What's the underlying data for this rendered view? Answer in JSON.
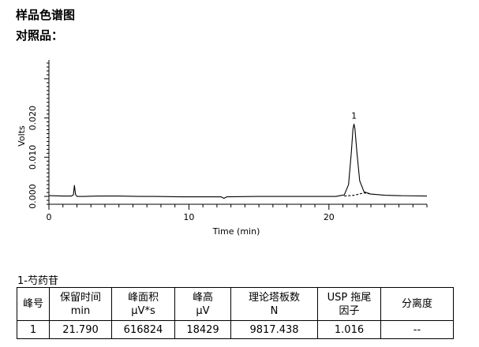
{
  "title": "样品色谱图",
  "subtitle": "对照品：",
  "chart_data": {
    "type": "line",
    "ylabel": "Volts",
    "xlabel": "Time (min)",
    "xlim": [
      0,
      27.0
    ],
    "ylim": [
      -0.002,
      0.0348
    ],
    "x_ticks": [
      0,
      10,
      20
    ],
    "y_ticks": [
      {
        "value": 0.0,
        "label": "0.000"
      },
      {
        "value": 0.01,
        "label": "0.010"
      },
      {
        "value": 0.02,
        "label": "0.020"
      }
    ],
    "series": [
      {
        "style": "solid",
        "points": [
          [
            0,
            0.0002
          ],
          [
            1.0,
            0.0001
          ],
          [
            1.6,
            0.0001
          ],
          [
            1.75,
            0.0004
          ],
          [
            1.82,
            0.0028
          ],
          [
            1.9,
            0.0005
          ],
          [
            2.0,
            0.0
          ],
          [
            2.5,
            0.0
          ],
          [
            3.5,
            0.0001
          ],
          [
            5.0,
            0.0001
          ],
          [
            6.5,
            0.0
          ],
          [
            7.5,
            0.0
          ],
          [
            9.5,
            -0.0001
          ],
          [
            12.3,
            -0.0001
          ],
          [
            12.5,
            -0.0005
          ],
          [
            12.7,
            -0.0001
          ],
          [
            15,
            0.0
          ],
          [
            18,
            0.0
          ],
          [
            20.5,
            0.0
          ],
          [
            21.1,
            0.0004
          ],
          [
            21.4,
            0.003
          ],
          [
            21.6,
            0.0112
          ],
          [
            21.72,
            0.0172
          ],
          [
            21.79,
            0.01843
          ],
          [
            21.86,
            0.0172
          ],
          [
            22.0,
            0.0112
          ],
          [
            22.2,
            0.004
          ],
          [
            22.5,
            0.0012
          ],
          [
            23.0,
            0.0006
          ],
          [
            24,
            0.0003
          ],
          [
            25,
            0.0002
          ],
          [
            27.0,
            0.0001
          ]
        ]
      },
      {
        "style": "dashed",
        "points": [
          [
            21.1,
            0.0001
          ],
          [
            21.8,
            0.0003
          ],
          [
            22.5,
            0.0009
          ],
          [
            23.0,
            0.0006
          ]
        ]
      }
    ],
    "peak_labels": [
      {
        "x": 21.79,
        "y": 0.01843,
        "label": "1"
      }
    ],
    "grid": false
  },
  "compound_label": "1-芍药苷",
  "table": {
    "headers": [
      [
        "峰号"
      ],
      [
        "保留时间",
        "min"
      ],
      [
        "峰面积",
        "µV*s"
      ],
      [
        "峰高",
        "µV"
      ],
      [
        "理论塔板数",
        "N"
      ],
      [
        "USP 拖尾",
        "因子"
      ],
      [
        "分离度"
      ]
    ],
    "rows": [
      [
        "1",
        "21.790",
        "616824",
        "18429",
        "9817.438",
        "1.016",
        "--"
      ]
    ]
  }
}
